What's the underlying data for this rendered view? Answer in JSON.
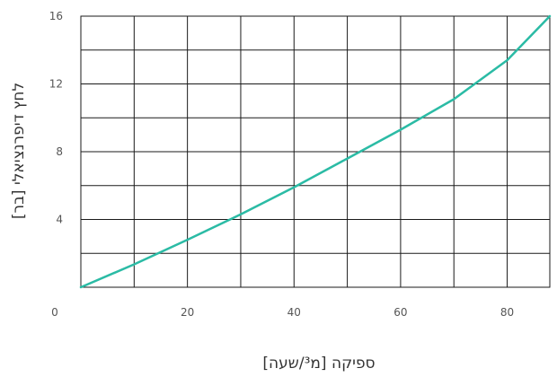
{
  "chart_data": {
    "type": "line",
    "title": "",
    "xlabel": "ספיקה [מ³/שעה]",
    "ylabel": "לחץ דיפרנציאלי [בר]",
    "xlim": [
      0,
      88
    ],
    "ylim": [
      0,
      16
    ],
    "x_tick_values": [
      0,
      20,
      40,
      60,
      80
    ],
    "x_tick_labels": [
      "0",
      "20",
      "40",
      "60",
      "80"
    ],
    "y_tick_values": [
      4,
      8,
      12,
      16
    ],
    "y_tick_labels": [
      "4",
      "8",
      "12",
      "16"
    ],
    "x_grid": [
      0,
      10,
      20,
      30,
      40,
      50,
      60,
      70,
      80,
      88
    ],
    "y_grid": [
      0,
      2,
      4,
      6,
      8,
      10,
      12,
      14,
      16
    ],
    "grid": true,
    "series": [
      {
        "name": "",
        "color": "#2bbba5",
        "x": [
          0,
          10,
          20,
          30,
          40,
          50,
          60,
          70,
          80,
          88
        ],
        "y": [
          0,
          1.35,
          2.8,
          4.3,
          5.9,
          7.6,
          9.3,
          11.1,
          13.4,
          16
        ]
      }
    ]
  }
}
